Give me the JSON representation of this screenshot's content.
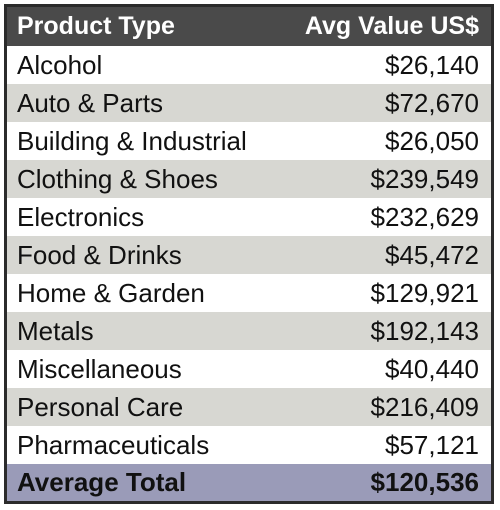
{
  "chart_data": {
    "type": "table",
    "columns": [
      "Product Type",
      "Avg Value US$"
    ],
    "rows": [
      {
        "label": "Alcohol",
        "value": "$26,140"
      },
      {
        "label": "Auto & Parts",
        "value": "$72,670"
      },
      {
        "label": "Building & Industrial",
        "value": "$26,050"
      },
      {
        "label": "Clothing & Shoes",
        "value": "$239,549"
      },
      {
        "label": "Electronics",
        "value": "$232,629"
      },
      {
        "label": "Food & Drinks",
        "value": "$45,472"
      },
      {
        "label": "Home & Garden",
        "value": "$129,921"
      },
      {
        "label": "Metals",
        "value": "$192,143"
      },
      {
        "label": "Miscellaneous",
        "value": "$40,440"
      },
      {
        "label": "Personal Care",
        "value": "$216,409"
      },
      {
        "label": "Pharmaceuticals",
        "value": "$57,121"
      }
    ],
    "total": {
      "label": "Average Total",
      "value": "$120,536"
    }
  },
  "colors": {
    "header_bg": "#4a4a4a",
    "stripe_bg": "#d7d7d2",
    "total_bg": "#9a9bb8",
    "border": "#2b2b2b"
  }
}
